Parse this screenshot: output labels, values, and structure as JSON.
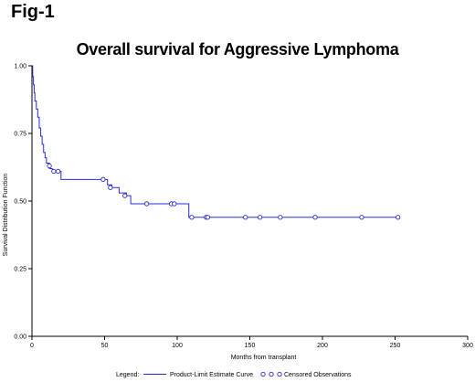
{
  "figure_label": "Fig-1",
  "chart_data": {
    "type": "line",
    "title": "Overall survival for Aggressive Lymphoma",
    "xlabel": "Months from transplant",
    "ylabel": "Survival Distribution Function",
    "xlim": [
      0,
      300
    ],
    "ylim": [
      0,
      1
    ],
    "x_ticks": [
      0,
      50,
      100,
      150,
      200,
      250,
      300
    ],
    "y_ticks": [
      0.0,
      0.25,
      0.5,
      0.75,
      1.0
    ],
    "x_tick_labels": [
      "0",
      "50",
      "100",
      "150",
      "200",
      "250",
      "300"
    ],
    "y_tick_labels": [
      "0.00",
      "0.25",
      "0.50",
      "0.75",
      "1.00"
    ],
    "grid": false,
    "colors": {
      "curve": "#2b2bd6",
      "axis": "#000000"
    },
    "series": [
      {
        "name": "Product-Limit Estimate Curve",
        "step": true,
        "points": [
          [
            0,
            1.0
          ],
          [
            0.5,
            0.96
          ],
          [
            1,
            0.93
          ],
          [
            1.5,
            0.9
          ],
          [
            2,
            0.87
          ],
          [
            3,
            0.84
          ],
          [
            4,
            0.81
          ],
          [
            5,
            0.77
          ],
          [
            6,
            0.74
          ],
          [
            7,
            0.71
          ],
          [
            8,
            0.68
          ],
          [
            9,
            0.66
          ],
          [
            10,
            0.64
          ],
          [
            12,
            0.62
          ],
          [
            14,
            0.61
          ],
          [
            20,
            0.58
          ],
          [
            50,
            0.58
          ],
          [
            52,
            0.56
          ],
          [
            55,
            0.55
          ],
          [
            60,
            0.53
          ],
          [
            65,
            0.52
          ],
          [
            68,
            0.49
          ],
          [
            96,
            0.49
          ],
          [
            100,
            0.49
          ],
          [
            108,
            0.44
          ],
          [
            252,
            0.44
          ]
        ]
      },
      {
        "name": "Censored Observations",
        "marker": "circle",
        "points": [
          [
            12,
            0.63
          ],
          [
            15,
            0.61
          ],
          [
            18,
            0.61
          ],
          [
            49,
            0.58
          ],
          [
            54,
            0.55
          ],
          [
            64,
            0.52
          ],
          [
            79,
            0.49
          ],
          [
            96,
            0.49
          ],
          [
            98,
            0.49
          ],
          [
            110,
            0.44
          ],
          [
            120,
            0.44
          ],
          [
            121,
            0.44
          ],
          [
            147,
            0.44
          ],
          [
            157,
            0.44
          ],
          [
            171,
            0.44
          ],
          [
            195,
            0.44
          ],
          [
            227,
            0.44
          ],
          [
            252,
            0.44
          ]
        ]
      }
    ],
    "legend": {
      "title": "Legend:",
      "placement": "bottom",
      "entries": [
        "Product-Limit Estimate Curve",
        "Censored Observations"
      ]
    }
  }
}
